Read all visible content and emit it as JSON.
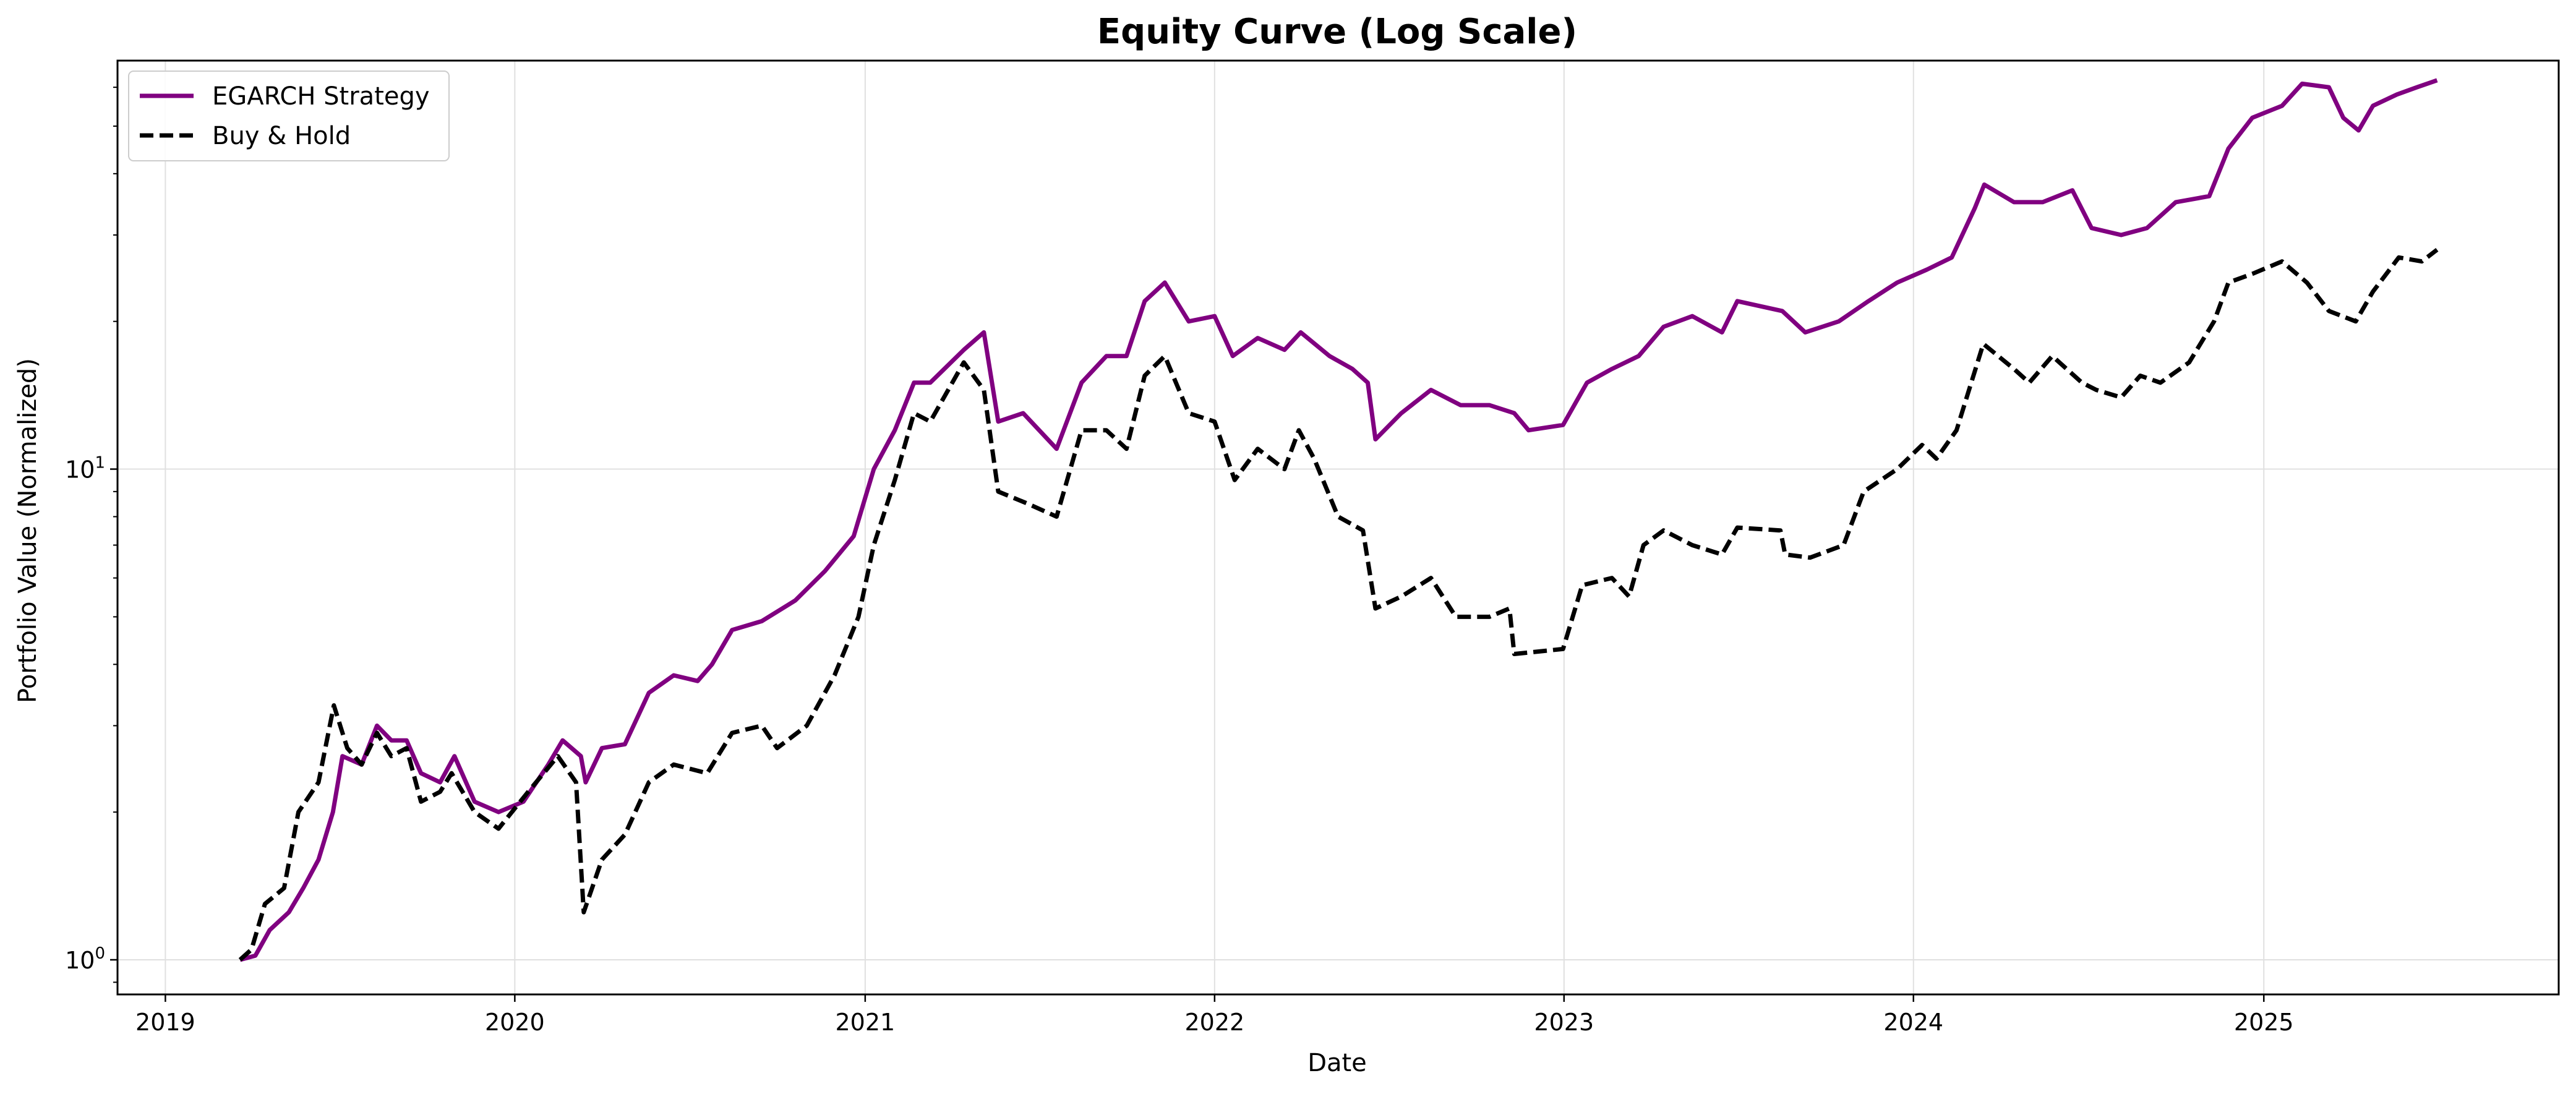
{
  "chart_data": {
    "type": "line",
    "title": "Equity Curve (Log Scale)",
    "xlabel": "Date",
    "ylabel": "Portfolio Value (Normalized)",
    "yscale": "log",
    "ylim": [
      0.85,
      68
    ],
    "xlim": [
      "2018-11-12",
      "2025-11-05"
    ],
    "x_ticks": [
      "2019",
      "2020",
      "2021",
      "2022",
      "2023",
      "2024",
      "2025"
    ],
    "y_ticks": [
      {
        "value": 1,
        "base": "10",
        "exp": "0"
      },
      {
        "value": 10,
        "base": "10",
        "exp": "1"
      }
    ],
    "grid": true,
    "legend": "upper-left",
    "colors": {
      "egarch": "#800080",
      "buyhold": "#000000",
      "grid": "#e0e0e0"
    },
    "series": [
      {
        "name": "EGARCH Strategy",
        "style": "solid",
        "color": "#800080",
        "points": [
          [
            "2019-03-20",
            1.0
          ],
          [
            "2019-04-05",
            1.02
          ],
          [
            "2019-04-20",
            1.15
          ],
          [
            "2019-05-10",
            1.25
          ],
          [
            "2019-05-25",
            1.4
          ],
          [
            "2019-06-10",
            1.6
          ],
          [
            "2019-06-25",
            2.0
          ],
          [
            "2019-07-05",
            2.6
          ],
          [
            "2019-07-25",
            2.5
          ],
          [
            "2019-08-10",
            3.0
          ],
          [
            "2019-08-25",
            2.8
          ],
          [
            "2019-09-10",
            2.8
          ],
          [
            "2019-09-25",
            2.4
          ],
          [
            "2019-10-15",
            2.3
          ],
          [
            "2019-10-30",
            2.6
          ],
          [
            "2019-11-20",
            2.1
          ],
          [
            "2019-12-15",
            2.0
          ],
          [
            "2020-01-10",
            2.1
          ],
          [
            "2020-02-05",
            2.5
          ],
          [
            "2020-02-20",
            2.8
          ],
          [
            "2020-03-10",
            2.6
          ],
          [
            "2020-03-15",
            2.3
          ],
          [
            "2020-04-01",
            2.7
          ],
          [
            "2020-04-25",
            2.75
          ],
          [
            "2020-05-20",
            3.5
          ],
          [
            "2020-06-15",
            3.8
          ],
          [
            "2020-07-10",
            3.7
          ],
          [
            "2020-07-25",
            4.0
          ],
          [
            "2020-08-15",
            4.7
          ],
          [
            "2020-09-15",
            4.9
          ],
          [
            "2020-10-20",
            5.4
          ],
          [
            "2020-11-20",
            6.2
          ],
          [
            "2020-12-20",
            7.3
          ],
          [
            "2021-01-10",
            10.0
          ],
          [
            "2021-02-01",
            12.0
          ],
          [
            "2021-02-21",
            15.0
          ],
          [
            "2021-03-10",
            15.0
          ],
          [
            "2021-04-14",
            17.5
          ],
          [
            "2021-05-05",
            19.0
          ],
          [
            "2021-05-20",
            12.5
          ],
          [
            "2021-06-15",
            13.0
          ],
          [
            "2021-07-20",
            11.0
          ],
          [
            "2021-08-15",
            15.0
          ],
          [
            "2021-09-10",
            17.0
          ],
          [
            "2021-10-01",
            17.0
          ],
          [
            "2021-10-20",
            22.0
          ],
          [
            "2021-11-10",
            24.0
          ],
          [
            "2021-12-05",
            20.0
          ],
          [
            "2022-01-01",
            20.5
          ],
          [
            "2022-01-20",
            17.0
          ],
          [
            "2022-02-15",
            18.5
          ],
          [
            "2022-03-15",
            17.5
          ],
          [
            "2022-04-01",
            19.0
          ],
          [
            "2022-05-01",
            17.0
          ],
          [
            "2022-05-25",
            16.0
          ],
          [
            "2022-06-10",
            15.0
          ],
          [
            "2022-06-18",
            11.5
          ],
          [
            "2022-07-15",
            13.0
          ],
          [
            "2022-08-15",
            14.5
          ],
          [
            "2022-09-15",
            13.5
          ],
          [
            "2022-10-15",
            13.5
          ],
          [
            "2022-11-10",
            13.0
          ],
          [
            "2022-11-25",
            12.0
          ],
          [
            "2022-12-31",
            12.3
          ],
          [
            "2023-01-25",
            15.0
          ],
          [
            "2023-02-20",
            16.0
          ],
          [
            "2023-03-20",
            17.0
          ],
          [
            "2023-04-15",
            19.5
          ],
          [
            "2023-05-15",
            20.5
          ],
          [
            "2023-06-15",
            19.0
          ],
          [
            "2023-07-01",
            22.0
          ],
          [
            "2023-08-17",
            21.0
          ],
          [
            "2023-09-10",
            19.0
          ],
          [
            "2023-10-15",
            20.0
          ],
          [
            "2023-11-15",
            22.0
          ],
          [
            "2023-12-15",
            24.0
          ],
          [
            "2024-01-15",
            25.5
          ],
          [
            "2024-02-10",
            27.0
          ],
          [
            "2024-03-05",
            34.0
          ],
          [
            "2024-03-15",
            38.0
          ],
          [
            "2024-04-15",
            35.0
          ],
          [
            "2024-05-15",
            35.0
          ],
          [
            "2024-06-15",
            37.0
          ],
          [
            "2024-07-05",
            31.0
          ],
          [
            "2024-08-05",
            30.0
          ],
          [
            "2024-09-01",
            31.0
          ],
          [
            "2024-10-01",
            35.0
          ],
          [
            "2024-11-05",
            36.0
          ],
          [
            "2024-11-25",
            45.0
          ],
          [
            "2024-12-20",
            52.0
          ],
          [
            "2025-01-20",
            55.0
          ],
          [
            "2025-02-10",
            61.0
          ],
          [
            "2025-03-10",
            60.0
          ],
          [
            "2025-03-25",
            52.0
          ],
          [
            "2025-04-10",
            49.0
          ],
          [
            "2025-04-25",
            55.0
          ],
          [
            "2025-05-20",
            58.0
          ],
          [
            "2025-06-10",
            60.0
          ],
          [
            "2025-07-01",
            62.0
          ]
        ]
      },
      {
        "name": "Buy & Hold",
        "style": "dashed",
        "color": "#000000",
        "points": [
          [
            "2019-03-20",
            1.0
          ],
          [
            "2019-04-01",
            1.05
          ],
          [
            "2019-04-15",
            1.3
          ],
          [
            "2019-05-05",
            1.4
          ],
          [
            "2019-05-20",
            2.0
          ],
          [
            "2019-06-10",
            2.3
          ],
          [
            "2019-06-26",
            3.3
          ],
          [
            "2019-07-10",
            2.7
          ],
          [
            "2019-07-25",
            2.5
          ],
          [
            "2019-08-10",
            2.9
          ],
          [
            "2019-08-25",
            2.6
          ],
          [
            "2019-09-10",
            2.7
          ],
          [
            "2019-09-25",
            2.1
          ],
          [
            "2019-10-15",
            2.2
          ],
          [
            "2019-10-27",
            2.4
          ],
          [
            "2019-11-20",
            2.0
          ],
          [
            "2019-12-15",
            1.85
          ],
          [
            "2020-01-15",
            2.2
          ],
          [
            "2020-02-15",
            2.6
          ],
          [
            "2020-03-05",
            2.3
          ],
          [
            "2020-03-13",
            1.25
          ],
          [
            "2020-04-01",
            1.6
          ],
          [
            "2020-04-25",
            1.8
          ],
          [
            "2020-05-20",
            2.3
          ],
          [
            "2020-06-15",
            2.5
          ],
          [
            "2020-07-20",
            2.4
          ],
          [
            "2020-08-15",
            2.9
          ],
          [
            "2020-09-15",
            3.0
          ],
          [
            "2020-10-01",
            2.7
          ],
          [
            "2020-11-01",
            3.0
          ],
          [
            "2020-11-30",
            3.8
          ],
          [
            "2020-12-25",
            5.0
          ],
          [
            "2021-01-10",
            7.0
          ],
          [
            "2021-02-01",
            9.5
          ],
          [
            "2021-02-21",
            13.0
          ],
          [
            "2021-03-10",
            12.5
          ],
          [
            "2021-04-14",
            16.5
          ],
          [
            "2021-05-05",
            14.5
          ],
          [
            "2021-05-20",
            9.0
          ],
          [
            "2021-06-20",
            8.5
          ],
          [
            "2021-07-20",
            8.0
          ],
          [
            "2021-08-15",
            12.0
          ],
          [
            "2021-09-10",
            12.0
          ],
          [
            "2021-10-01",
            11.0
          ],
          [
            "2021-10-20",
            15.5
          ],
          [
            "2021-11-10",
            17.0
          ],
          [
            "2021-12-05",
            13.0
          ],
          [
            "2022-01-01",
            12.5
          ],
          [
            "2022-01-22",
            9.5
          ],
          [
            "2022-02-15",
            11.0
          ],
          [
            "2022-03-15",
            10.0
          ],
          [
            "2022-03-30",
            12.0
          ],
          [
            "2022-04-15",
            10.5
          ],
          [
            "2022-05-10",
            8.0
          ],
          [
            "2022-06-05",
            7.5
          ],
          [
            "2022-06-18",
            5.2
          ],
          [
            "2022-07-15",
            5.5
          ],
          [
            "2022-08-15",
            6.0
          ],
          [
            "2022-09-10",
            5.0
          ],
          [
            "2022-10-15",
            5.0
          ],
          [
            "2022-11-05",
            5.2
          ],
          [
            "2022-11-10",
            4.2
          ],
          [
            "2022-12-31",
            4.3
          ],
          [
            "2023-01-20",
            5.8
          ],
          [
            "2023-02-20",
            6.0
          ],
          [
            "2023-03-10",
            5.5
          ],
          [
            "2023-03-25",
            7.0
          ],
          [
            "2023-04-15",
            7.5
          ],
          [
            "2023-05-15",
            7.0
          ],
          [
            "2023-06-15",
            6.7
          ],
          [
            "2023-07-01",
            7.6
          ],
          [
            "2023-08-15",
            7.5
          ],
          [
            "2023-08-20",
            6.7
          ],
          [
            "2023-09-15",
            6.6
          ],
          [
            "2023-10-20",
            7.0
          ],
          [
            "2023-11-10",
            9.0
          ],
          [
            "2023-12-15",
            10.0
          ],
          [
            "2024-01-10",
            11.2
          ],
          [
            "2024-01-25",
            10.5
          ],
          [
            "2024-02-15",
            12.0
          ],
          [
            "2024-03-14",
            18.0
          ],
          [
            "2024-04-15",
            16.0
          ],
          [
            "2024-05-01",
            15.0
          ],
          [
            "2024-05-25",
            17.0
          ],
          [
            "2024-06-25",
            15.0
          ],
          [
            "2024-07-10",
            14.5
          ],
          [
            "2024-08-05",
            14.0
          ],
          [
            "2024-08-25",
            15.5
          ],
          [
            "2024-09-15",
            15.0
          ],
          [
            "2024-10-15",
            16.5
          ],
          [
            "2024-11-10",
            20.0
          ],
          [
            "2024-11-25",
            24.0
          ],
          [
            "2024-12-20",
            25.0
          ],
          [
            "2025-01-20",
            26.5
          ],
          [
            "2025-02-15",
            24.0
          ],
          [
            "2025-03-10",
            21.0
          ],
          [
            "2025-04-07",
            20.0
          ],
          [
            "2025-04-25",
            23.0
          ],
          [
            "2025-05-22",
            27.0
          ],
          [
            "2025-06-15",
            26.5
          ],
          [
            "2025-07-01",
            28.0
          ]
        ]
      }
    ]
  }
}
